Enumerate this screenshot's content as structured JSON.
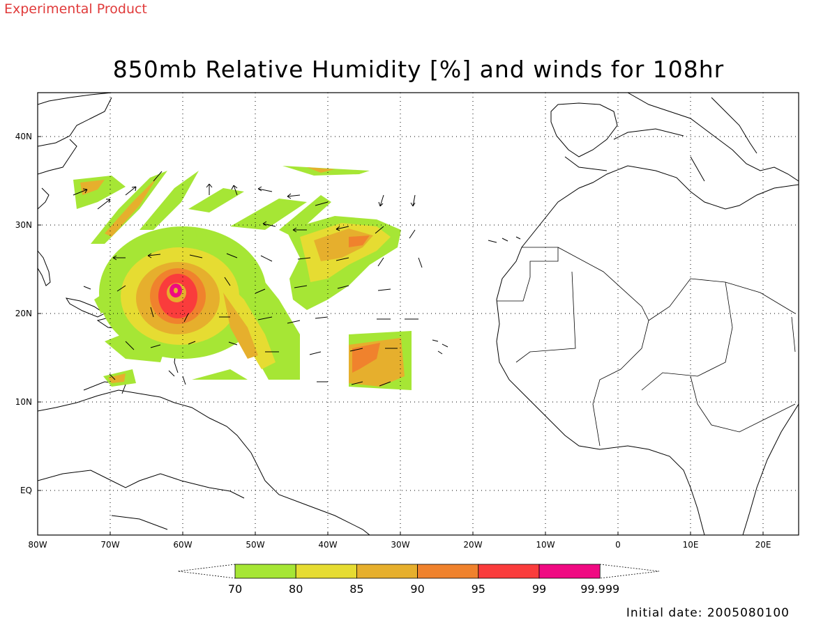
{
  "header": {
    "experimental": "Experimental Product",
    "title": "850mb Relative Humidity [%] and winds for 108hr"
  },
  "axes": {
    "lon_ticks": [
      "80W",
      "70W",
      "60W",
      "50W",
      "40W",
      "30W",
      "20W",
      "10W",
      "0",
      "10E",
      "20E"
    ],
    "lat_ticks": [
      "40N",
      "30N",
      "20N",
      "10N",
      "EQ"
    ]
  },
  "colorbar": {
    "labels": [
      "70",
      "80",
      "85",
      "90",
      "95",
      "99",
      "99.999"
    ],
    "colors": [
      "#a6e635",
      "#e6dc32",
      "#e6af2d",
      "#f0822d",
      "#fa3c3c",
      "#f00a82"
    ]
  },
  "footer": {
    "initial_date": "Initial date: 2005080100"
  }
}
